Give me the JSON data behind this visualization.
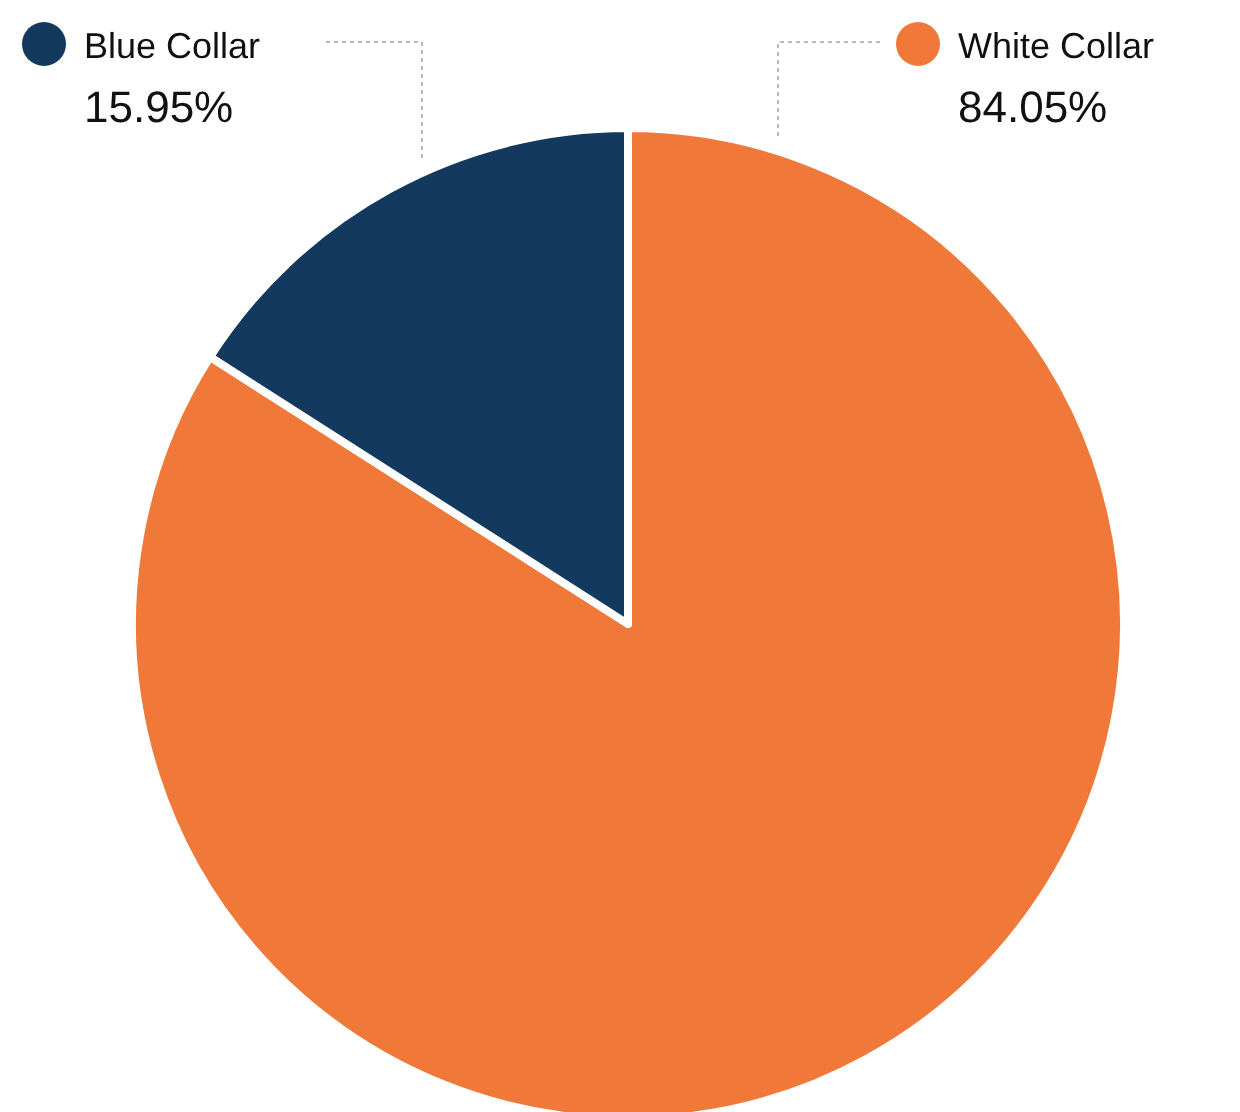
{
  "chart_data": {
    "type": "pie",
    "categories": [
      "White Collar",
      "Blue Collar"
    ],
    "values": [
      84.05,
      15.95
    ],
    "colors": [
      "#f07838",
      "#133a5e"
    ],
    "value_labels": [
      "84.05%",
      "15.95%"
    ]
  }
}
